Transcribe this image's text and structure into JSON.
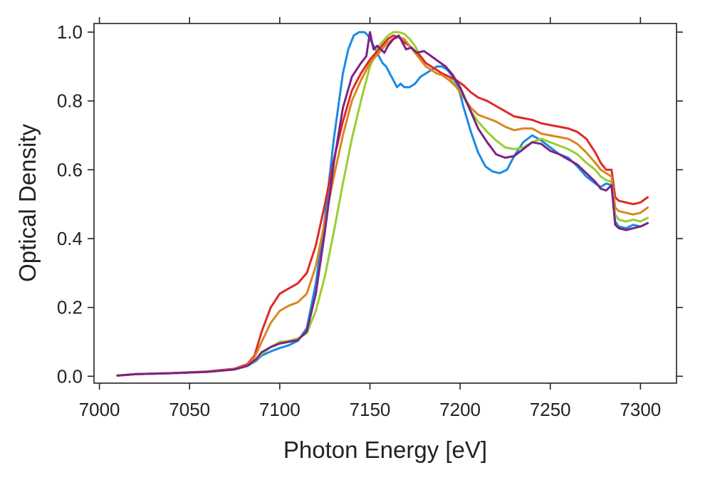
{
  "chart_data": {
    "type": "line",
    "title": "",
    "xlabel": "Photon Energy [eV]",
    "ylabel": "Optical Density",
    "xlim": [
      6997,
      7320
    ],
    "ylim": [
      -0.02,
      1.025
    ],
    "xticks": [
      7000,
      7050,
      7100,
      7150,
      7200,
      7250,
      7300
    ],
    "yticks": [
      0.0,
      0.2,
      0.4,
      0.6,
      0.8,
      1.0
    ],
    "xtick_labels": [
      "7000",
      "7050",
      "7100",
      "7150",
      "7200",
      "7250",
      "7300"
    ],
    "ytick_labels": [
      "0.0",
      "0.2",
      "0.4",
      "0.6",
      "0.8",
      "1.0"
    ],
    "grid": false,
    "legend": "none",
    "series": [
      {
        "color": "#1a8ae6",
        "x": [
          7010,
          7015,
          7020,
          7040,
          7060,
          7075,
          7082,
          7087,
          7090,
          7095,
          7100,
          7105,
          7110,
          7115,
          7120,
          7125,
          7130,
          7135,
          7138,
          7141,
          7144,
          7147,
          7149,
          7151,
          7153,
          7155,
          7157,
          7159,
          7161,
          7163,
          7165,
          7167,
          7169,
          7172,
          7175,
          7178,
          7181,
          7184,
          7187,
          7190,
          7193,
          7196,
          7199,
          7202,
          7206,
          7210,
          7214,
          7218,
          7222,
          7226,
          7230,
          7235,
          7240,
          7245,
          7250,
          7255,
          7260,
          7265,
          7270,
          7275,
          7278,
          7281,
          7284,
          7286,
          7288,
          7292,
          7296,
          7300,
          7304
        ],
        "y": [
          0.002,
          0.004,
          0.006,
          0.009,
          0.013,
          0.02,
          0.03,
          0.045,
          0.06,
          0.072,
          0.082,
          0.09,
          0.103,
          0.14,
          0.27,
          0.46,
          0.69,
          0.88,
          0.95,
          0.99,
          1.0,
          1.0,
          0.99,
          0.97,
          0.95,
          0.93,
          0.91,
          0.9,
          0.88,
          0.86,
          0.84,
          0.85,
          0.84,
          0.84,
          0.85,
          0.87,
          0.88,
          0.89,
          0.9,
          0.9,
          0.89,
          0.87,
          0.84,
          0.78,
          0.71,
          0.65,
          0.61,
          0.595,
          0.59,
          0.6,
          0.64,
          0.68,
          0.7,
          0.685,
          0.665,
          0.645,
          0.635,
          0.61,
          0.58,
          0.56,
          0.55,
          0.56,
          0.555,
          0.45,
          0.435,
          0.43,
          0.44,
          0.435,
          0.445
        ]
      },
      {
        "color": "#9acd32",
        "x": [
          7010,
          7015,
          7020,
          7040,
          7060,
          7075,
          7082,
          7087,
          7090,
          7095,
          7100,
          7105,
          7110,
          7115,
          7120,
          7125,
          7130,
          7135,
          7140,
          7145,
          7150,
          7155,
          7160,
          7163,
          7166,
          7169,
          7172,
          7175,
          7178,
          7181,
          7184,
          7187,
          7190,
          7194,
          7198,
          7202,
          7206,
          7210,
          7215,
          7220,
          7225,
          7230,
          7235,
          7240,
          7245,
          7250,
          7255,
          7260,
          7265,
          7270,
          7275,
          7278,
          7281,
          7284,
          7286,
          7288,
          7292,
          7296,
          7300,
          7304
        ],
        "y": [
          0.002,
          0.004,
          0.006,
          0.009,
          0.013,
          0.02,
          0.03,
          0.048,
          0.065,
          0.085,
          0.1,
          0.103,
          0.11,
          0.125,
          0.19,
          0.29,
          0.42,
          0.56,
          0.69,
          0.8,
          0.9,
          0.96,
          0.99,
          1.0,
          1.0,
          0.995,
          0.98,
          0.96,
          0.93,
          0.91,
          0.9,
          0.89,
          0.88,
          0.87,
          0.84,
          0.81,
          0.77,
          0.74,
          0.71,
          0.685,
          0.665,
          0.66,
          0.665,
          0.68,
          0.69,
          0.68,
          0.67,
          0.66,
          0.645,
          0.62,
          0.6,
          0.58,
          0.57,
          0.565,
          0.47,
          0.455,
          0.45,
          0.455,
          0.45,
          0.46
        ]
      },
      {
        "color": "#e02828",
        "x": [
          7010,
          7015,
          7020,
          7040,
          7060,
          7075,
          7082,
          7086,
          7090,
          7095,
          7100,
          7105,
          7110,
          7115,
          7120,
          7125,
          7130,
          7135,
          7140,
          7145,
          7150,
          7155,
          7160,
          7163,
          7166,
          7169,
          7172,
          7175,
          7178,
          7181,
          7184,
          7187,
          7190,
          7194,
          7198,
          7202,
          7206,
          7210,
          7215,
          7220,
          7225,
          7230,
          7235,
          7240,
          7245,
          7250,
          7255,
          7260,
          7265,
          7270,
          7275,
          7278,
          7281,
          7284,
          7286,
          7288,
          7292,
          7296,
          7300,
          7304
        ],
        "y": [
          0.002,
          0.004,
          0.006,
          0.009,
          0.014,
          0.022,
          0.035,
          0.06,
          0.13,
          0.2,
          0.24,
          0.255,
          0.27,
          0.3,
          0.38,
          0.5,
          0.63,
          0.74,
          0.83,
          0.88,
          0.92,
          0.95,
          0.98,
          0.99,
          0.985,
          0.97,
          0.96,
          0.945,
          0.93,
          0.91,
          0.9,
          0.89,
          0.88,
          0.87,
          0.86,
          0.845,
          0.825,
          0.81,
          0.8,
          0.785,
          0.77,
          0.755,
          0.75,
          0.745,
          0.735,
          0.73,
          0.725,
          0.72,
          0.71,
          0.69,
          0.65,
          0.62,
          0.6,
          0.6,
          0.52,
          0.51,
          0.505,
          0.5,
          0.505,
          0.52
        ]
      },
      {
        "color": "#d9861f",
        "x": [
          7010,
          7015,
          7020,
          7040,
          7060,
          7075,
          7082,
          7086,
          7090,
          7095,
          7100,
          7105,
          7110,
          7115,
          7120,
          7125,
          7130,
          7135,
          7140,
          7145,
          7150,
          7155,
          7160,
          7163,
          7166,
          7169,
          7172,
          7175,
          7178,
          7181,
          7184,
          7187,
          7190,
          7194,
          7198,
          7202,
          7206,
          7210,
          7215,
          7220,
          7225,
          7230,
          7235,
          7240,
          7245,
          7250,
          7255,
          7260,
          7265,
          7270,
          7275,
          7278,
          7281,
          7284,
          7286,
          7288,
          7292,
          7296,
          7300,
          7304
        ],
        "y": [
          0.002,
          0.004,
          0.006,
          0.009,
          0.013,
          0.021,
          0.032,
          0.055,
          0.1,
          0.155,
          0.19,
          0.205,
          0.215,
          0.24,
          0.32,
          0.45,
          0.58,
          0.7,
          0.8,
          0.86,
          0.91,
          0.94,
          0.97,
          0.98,
          0.985,
          0.98,
          0.96,
          0.94,
          0.92,
          0.9,
          0.89,
          0.88,
          0.875,
          0.86,
          0.84,
          0.81,
          0.78,
          0.76,
          0.75,
          0.74,
          0.725,
          0.715,
          0.72,
          0.72,
          0.705,
          0.7,
          0.695,
          0.69,
          0.675,
          0.65,
          0.62,
          0.6,
          0.59,
          0.58,
          0.49,
          0.48,
          0.475,
          0.47,
          0.475,
          0.49
        ]
      },
      {
        "color": "#7b2384",
        "x": [
          7010,
          7015,
          7020,
          7040,
          7060,
          7075,
          7082,
          7087,
          7090,
          7095,
          7100,
          7105,
          7110,
          7115,
          7120,
          7125,
          7130,
          7135,
          7140,
          7145,
          7148,
          7150,
          7152,
          7154,
          7156,
          7158,
          7160,
          7163,
          7166,
          7168,
          7170,
          7173,
          7176,
          7180,
          7184,
          7188,
          7192,
          7196,
          7200,
          7205,
          7210,
          7215,
          7220,
          7225,
          7230,
          7235,
          7240,
          7245,
          7250,
          7255,
          7260,
          7265,
          7270,
          7275,
          7278,
          7281,
          7284,
          7286,
          7288,
          7292,
          7296,
          7300,
          7304
        ],
        "y": [
          0.002,
          0.004,
          0.006,
          0.009,
          0.013,
          0.02,
          0.03,
          0.05,
          0.07,
          0.085,
          0.095,
          0.1,
          0.105,
          0.13,
          0.24,
          0.42,
          0.62,
          0.78,
          0.87,
          0.91,
          0.93,
          1.0,
          0.95,
          0.96,
          0.95,
          0.94,
          0.96,
          0.98,
          0.99,
          0.97,
          0.95,
          0.955,
          0.94,
          0.945,
          0.93,
          0.915,
          0.9,
          0.875,
          0.84,
          0.78,
          0.72,
          0.68,
          0.645,
          0.635,
          0.64,
          0.66,
          0.68,
          0.675,
          0.655,
          0.645,
          0.63,
          0.615,
          0.59,
          0.565,
          0.545,
          0.54,
          0.555,
          0.44,
          0.43,
          0.425,
          0.43,
          0.435,
          0.445
        ]
      }
    ]
  }
}
